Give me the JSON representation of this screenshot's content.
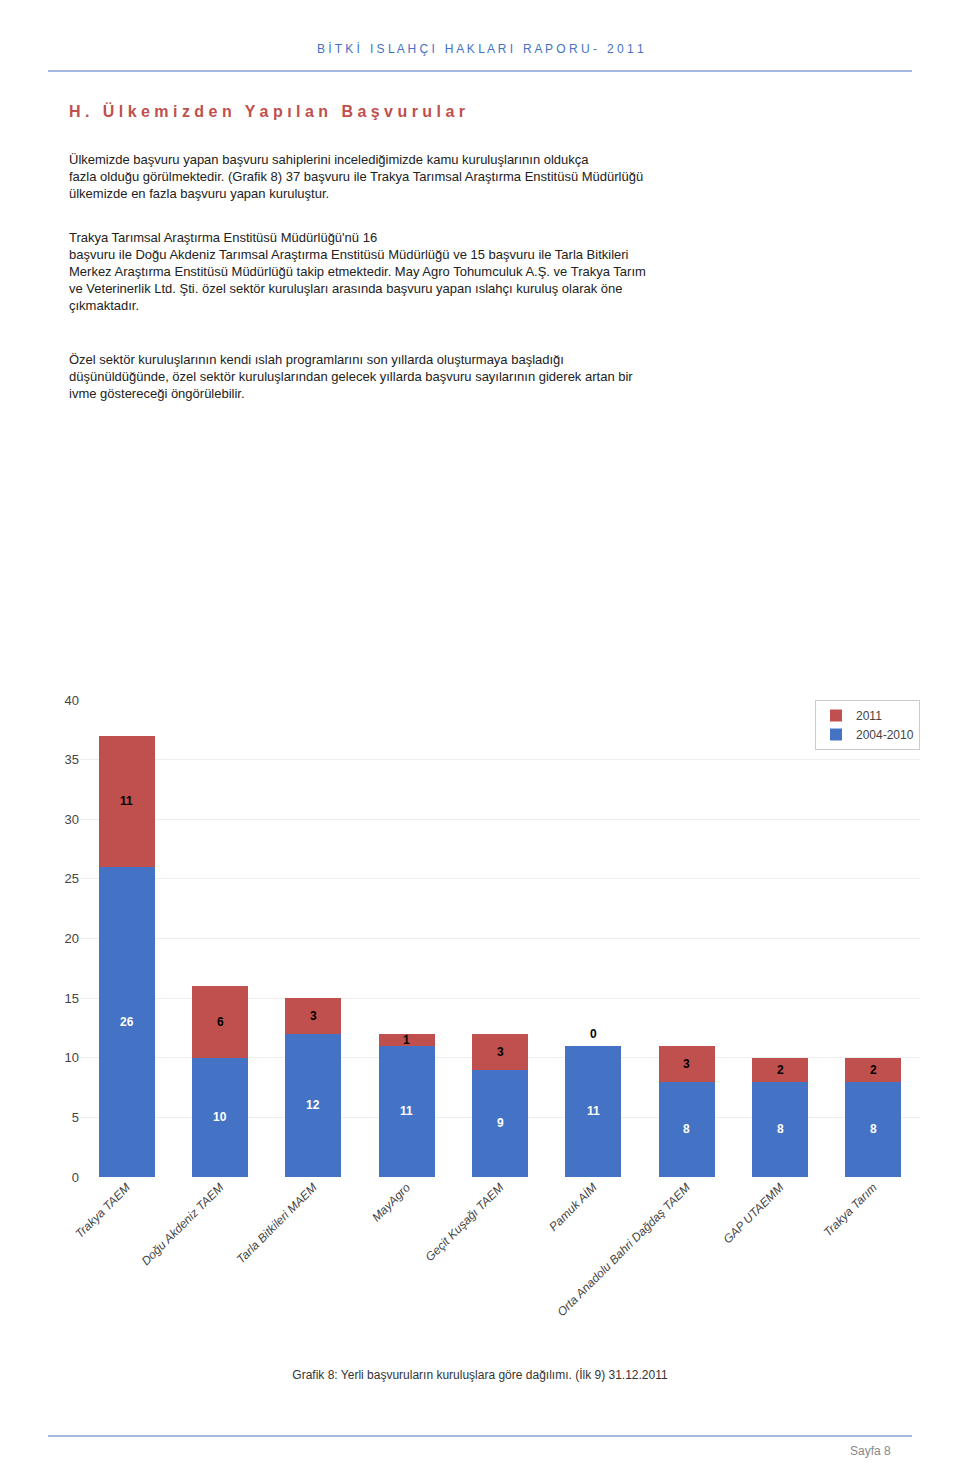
{
  "chart_data": {
    "type": "bar",
    "title": "Grafik 8: Yerli başvuruların kuruluşlara göre dağılımı. (İlk 9) 31.12.2011",
    "annotations": [
      "B İ T K İ   I S L A H Ç I   H A K L A R I   R A P O R U -   2 0 1 1",
      "H .   Ü l k e m i z d e n   Y a p ı l a n   B a ş v u r u l a r",
      "Ülkemizde başvuru yapan başvuru sahiplerini incelediğimizde kamu kuruluşlarının oldukça\nfazla olduğu görülmektedir. (Grafik 8) 37 başvuru ile Trakya Tarımsal Araştırma Enstitüsü Müdürlüğü\nülkemizde en fazla başvuru yapan kuruluştur.",
      "Trakya Tarımsal Araştırma Enstitüsü Müdürlüğü'nü 16\nbaşvuru ile Doğu Akdeniz Tarımsal Araştırma Enstitüsü Müdürlüğü ve 15 başvuru ile Tarla Bitkileri\nMerkez Araştırma Enstitüsü Müdürlüğü takip etmektedir. May Agro Tohumculuk A.Ş. ve Trakya Tarım\nve Veterinerlik Ltd. Şti. özel sektör kuruluşları arasında başvuru yapan ıslahçı kuruluş olarak öne\nçıkmaktadır.",
      "Özel sektör kuruluşlarının kendi ıslah programlarını son yıllarda oluşturmaya başladığı\ndüşünüldüğünde, özel sektör kuruluşlarından gelecek yıllarda başvuru sayılarının giderek artan bir\nivme göstereceği öngörülebilir.",
      "Sayfa 8"
    ],
    "categories": [
      "Trakya TAEM",
      "Doğu Akdeniz TAEM",
      "Tarla Bitkileri MAEM",
      "MayAgro",
      "Geçit Kuşağı TAEM",
      "Pamuk AİM",
      "Orta Anadolu Bahri Dağdaş TAEM",
      "GAP UTAEMM",
      "Trakya Tarım"
    ],
    "series": [
      {
        "name": "2004-2010",
        "color": "#4472C4",
        "values": [
          26,
          10,
          12,
          11,
          9,
          11,
          8,
          8,
          8
        ]
      },
      {
        "name": "2011",
        "color": "#C0504D",
        "values": [
          11,
          6,
          3,
          1,
          3,
          0,
          3,
          2,
          2
        ]
      }
    ],
    "stacked": true,
    "data_labels": true,
    "ylim": [
      0,
      40
    ],
    "yticks": [
      0,
      5,
      10,
      15,
      20,
      25,
      30,
      35,
      40
    ],
    "grid": true,
    "legend": "upper right"
  }
}
